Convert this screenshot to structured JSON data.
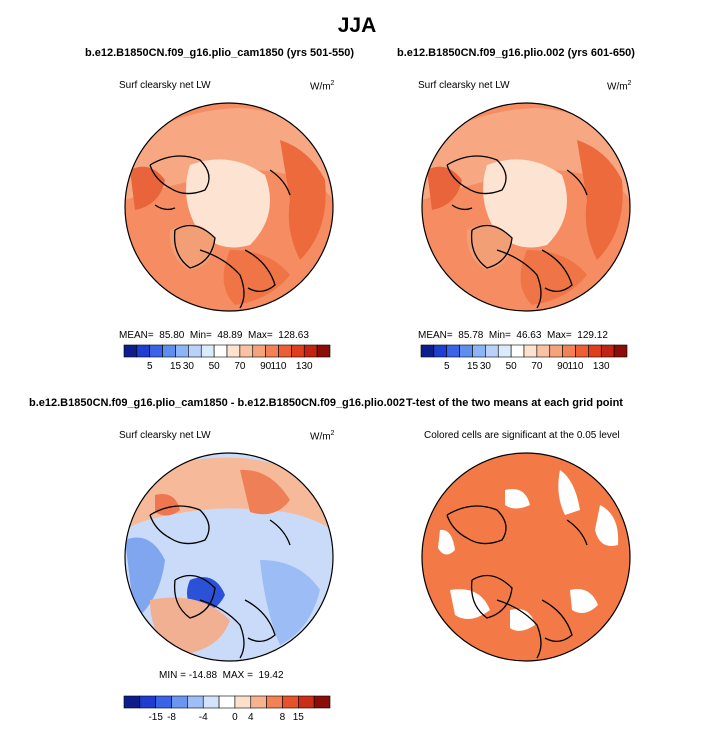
{
  "figure": {
    "season": "JJA",
    "colors": {
      "warm_fill": "#f0784a",
      "cold_fill": "#5a8ee6",
      "neutral_fill": "#fbd9c3",
      "significant_fill": "#f37a46"
    }
  },
  "chart_data": [
    {
      "type": "heatmap",
      "projection": "north-polar-stereographic",
      "title": "b.e12.B1850CN.f09_g16.plio_cam1850 (yrs 501-550)",
      "subtitle": "Surf clearsky net LW",
      "units": "W/m",
      "units_exp": "2",
      "stats": {
        "mean_label": "MEAN=",
        "mean": "85.80",
        "min_label": "Min=",
        "min": "48.89",
        "max_label": "Max=",
        "max": "128.63"
      },
      "colorbar": {
        "ticks": [
          "5",
          "15",
          "30",
          "50",
          "70",
          "90",
          "110",
          "130"
        ],
        "colors": [
          "#0d1e8c",
          "#1f3dcf",
          "#3a64e8",
          "#5f8ef0",
          "#8db4f7",
          "#b8d2fa",
          "#dcebfb",
          "#ffffff",
          "#fde2cf",
          "#f9c3a3",
          "#f6a27a",
          "#f28155",
          "#ec5f34",
          "#df3e1c",
          "#c22412",
          "#8b0d08"
        ]
      }
    },
    {
      "type": "heatmap",
      "projection": "north-polar-stereographic",
      "title": "b.e12.B1850CN.f09_g16.plio.002 (yrs 601-650)",
      "subtitle": "Surf clearsky net LW",
      "units": "W/m",
      "units_exp": "2",
      "stats": {
        "mean_label": "MEAN=",
        "mean": "85.78",
        "min_label": "Min=",
        "min": "46.63",
        "max_label": "Max=",
        "max": "129.12"
      },
      "colorbar": {
        "ticks": [
          "5",
          "15",
          "30",
          "50",
          "70",
          "90",
          "110",
          "130"
        ],
        "colors": [
          "#0d1e8c",
          "#1f3dcf",
          "#3a64e8",
          "#5f8ef0",
          "#8db4f7",
          "#b8d2fa",
          "#dcebfb",
          "#ffffff",
          "#fde2cf",
          "#f9c3a3",
          "#f6a27a",
          "#f28155",
          "#ec5f34",
          "#df3e1c",
          "#c22412",
          "#8b0d08"
        ]
      }
    },
    {
      "type": "heatmap",
      "projection": "north-polar-stereographic",
      "title": "b.e12.B1850CN.f09_g16.plio_cam1850 - b.e12.B1850CN.f09_g16.plio.002",
      "subtitle": "Surf clearsky net LW",
      "units": "W/m",
      "units_exp": "2",
      "stats": {
        "min_label": "MIN =",
        "min": "-14.88",
        "max_label": "MAX =",
        "max": "19.42"
      },
      "colorbar": {
        "ticks": [
          "-15",
          "-8",
          "-4",
          "0",
          "4",
          "8",
          "15"
        ],
        "colors": [
          "#0d1e8c",
          "#1f3dcf",
          "#3a64e8",
          "#6a96f0",
          "#9dbef7",
          "#d2e3fb",
          "#ffffff",
          "#fde0cc",
          "#f8b28e",
          "#f28155",
          "#e6532b",
          "#cc2d16",
          "#8b0d08"
        ]
      }
    },
    {
      "type": "heatmap",
      "projection": "north-polar-stereographic",
      "title": "T-test of the two means at each grid point",
      "subtitle": "Colored cells are significant at the 0.05 level"
    }
  ]
}
